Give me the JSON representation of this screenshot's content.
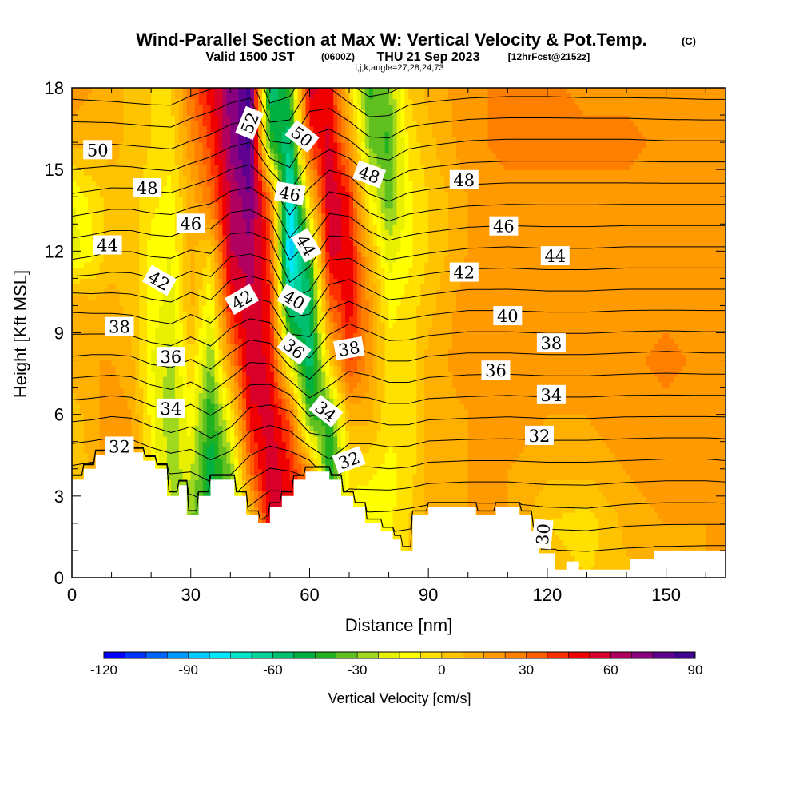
{
  "header": {
    "title": "Wind-Parallel Section at Max W: Vertical Velocity & Pot.Temp.",
    "title_units": "(C)",
    "subtitle_main": "Valid 1500 JST",
    "subtitle_utc": "(0600Z)",
    "subtitle_date": "THU 21 Sep 2023",
    "subtitle_fcst": "[12hrFcst@2152z]",
    "subtitle_indices": "i,j,k,angle=27,28,24,73"
  },
  "chart_data": {
    "type": "heatmap",
    "xlabel": "Distance [nm]",
    "ylabel": "Height [Kft MSL]",
    "xlim": [
      0,
      165
    ],
    "ylim": [
      0,
      18
    ],
    "x_ticks": [
      0,
      30,
      60,
      90,
      120,
      150
    ],
    "x_tick_labels": [
      "0",
      "30",
      "60",
      "90",
      "120",
      "150"
    ],
    "y_ticks": [
      0,
      3,
      6,
      9,
      12,
      15,
      18
    ],
    "y_tick_labels": [
      "0",
      "3",
      "6",
      "9",
      "12",
      "15",
      "18"
    ],
    "fill_variable": "Vertical Velocity [cm/s]",
    "contour_variable": "Pot.Temp. (C)",
    "colorbar": {
      "label": "Vertical Velocity [cm/s]",
      "range": [
        -120,
        90
      ],
      "interval": 7.5,
      "tick_values": [
        -120,
        -90,
        -60,
        -30,
        0,
        30,
        60,
        90
      ],
      "tick_labels": [
        "-120",
        "-90",
        "-60",
        "-30",
        "0",
        "30",
        "60",
        "90"
      ],
      "colors": [
        "#0000ff",
        "#0033ff",
        "#0066ff",
        "#0099ff",
        "#00ccff",
        "#00e8ff",
        "#00e6c8",
        "#00d29a",
        "#00c070",
        "#00b040",
        "#20b020",
        "#60c020",
        "#a0d820",
        "#e8f000",
        "#ffff00",
        "#ffe000",
        "#ffc400",
        "#ffb000",
        "#ff9a00",
        "#ff7f00",
        "#ff5f00",
        "#ff3000",
        "#f00000",
        "#d8002a",
        "#b00060",
        "#880080",
        "#600090",
        "#400090"
      ]
    },
    "columns": [
      {
        "x": 0,
        "w": [
          0,
          0,
          0,
          5,
          10,
          15,
          -20,
          -15,
          10,
          20
        ]
      },
      {
        "x": 5,
        "w": [
          5,
          5,
          10,
          10,
          15,
          10,
          -10,
          -5,
          10,
          15
        ]
      },
      {
        "x": 10,
        "w": [
          10,
          15,
          20,
          20,
          15,
          10,
          5,
          5,
          10,
          10
        ]
      },
      {
        "x": 15,
        "w": [
          5,
          10,
          15,
          15,
          10,
          5,
          5,
          5,
          5,
          5
        ]
      },
      {
        "x": 20,
        "w": [
          0,
          -5,
          -10,
          -10,
          -15,
          -10,
          -10,
          -5,
          0,
          0
        ]
      },
      {
        "x": 25,
        "w": [
          -10,
          -20,
          -25,
          -30,
          -25,
          -20,
          -15,
          -10,
          -5,
          0
        ]
      },
      {
        "x": 30,
        "w": [
          -30,
          -30,
          -20,
          -10,
          0,
          10,
          10,
          10,
          20,
          30
        ]
      },
      {
        "x": 35,
        "w": [
          -40,
          -45,
          -50,
          -45,
          -30,
          -15,
          0,
          30,
          40,
          50
        ]
      },
      {
        "x": 40,
        "w": [
          -50,
          -45,
          -30,
          -10,
          20,
          45,
          60,
          60,
          70,
          70
        ]
      },
      {
        "x": 45,
        "w": [
          -20,
          0,
          30,
          50,
          60,
          60,
          65,
          75,
          85,
          85
        ]
      },
      {
        "x": 50,
        "w": [
          40,
          50,
          60,
          55,
          50,
          45,
          40,
          30,
          -40,
          -60
        ]
      },
      {
        "x": 55,
        "w": [
          60,
          55,
          45,
          35,
          -20,
          -60,
          -90,
          -80,
          -60,
          -40
        ]
      },
      {
        "x": 60,
        "w": [
          50,
          40,
          20,
          -40,
          -60,
          -60,
          -40,
          0,
          40,
          55
        ]
      },
      {
        "x": 65,
        "w": [
          0,
          -30,
          -50,
          -40,
          0,
          30,
          55,
          60,
          55,
          50
        ]
      },
      {
        "x": 70,
        "w": [
          -10,
          -10,
          -5,
          10,
          40,
          50,
          50,
          45,
          20,
          0
        ]
      },
      {
        "x": 75,
        "w": [
          -10,
          -15,
          -5,
          10,
          20,
          20,
          10,
          -10,
          -30,
          -40
        ]
      },
      {
        "x": 80,
        "w": [
          -5,
          -10,
          -10,
          -5,
          -5,
          -10,
          -20,
          -35,
          -40,
          -30
        ]
      },
      {
        "x": 85,
        "w": [
          0,
          0,
          -5,
          -5,
          -5,
          -5,
          -10,
          -10,
          -5,
          0
        ]
      },
      {
        "x": 90,
        "w": [
          5,
          10,
          10,
          10,
          10,
          5,
          0,
          0,
          5,
          10
        ]
      },
      {
        "x": 100,
        "w": [
          15,
          15,
          15,
          15,
          20,
          20,
          15,
          15,
          20,
          20
        ]
      },
      {
        "x": 110,
        "w": [
          10,
          15,
          15,
          20,
          20,
          20,
          20,
          20,
          25,
          25
        ]
      },
      {
        "x": 120,
        "w": [
          5,
          0,
          10,
          15,
          15,
          15,
          15,
          20,
          25,
          25
        ]
      },
      {
        "x": 130,
        "w": [
          0,
          -5,
          10,
          15,
          15,
          15,
          15,
          20,
          25,
          20
        ]
      },
      {
        "x": 140,
        "w": [
          5,
          10,
          15,
          20,
          20,
          20,
          20,
          20,
          25,
          20
        ]
      },
      {
        "x": 150,
        "w": [
          10,
          15,
          20,
          20,
          25,
          20,
          20,
          20,
          20,
          20
        ]
      },
      {
        "x": 160,
        "w": [
          15,
          15,
          20,
          20,
          20,
          20,
          20,
          20,
          20,
          15
        ]
      },
      {
        "x": 165,
        "w": [
          15,
          15,
          15,
          20,
          20,
          20,
          20,
          20,
          20,
          15
        ]
      }
    ],
    "column_levels_kft": [
      0,
      2,
      4,
      6,
      8,
      10,
      12,
      14,
      16,
      18
    ],
    "terrain_kft": [
      [
        0,
        3.6
      ],
      [
        3,
        3.6
      ],
      [
        3,
        4.0
      ],
      [
        6,
        4.0
      ],
      [
        6,
        4.5
      ],
      [
        9,
        4.5
      ],
      [
        9,
        4.6
      ],
      [
        18,
        4.6
      ],
      [
        18,
        4.3
      ],
      [
        21,
        4.3
      ],
      [
        21,
        4.0
      ],
      [
        24,
        4.0
      ],
      [
        24,
        3.0
      ],
      [
        27,
        3.0
      ],
      [
        27,
        3.4
      ],
      [
        29,
        3.4
      ],
      [
        29,
        2.3
      ],
      [
        32,
        2.3
      ],
      [
        32,
        3.0
      ],
      [
        35,
        3.0
      ],
      [
        35,
        3.6
      ],
      [
        41,
        3.6
      ],
      [
        41,
        3.0
      ],
      [
        44,
        3.0
      ],
      [
        44,
        2.3
      ],
      [
        47,
        2.3
      ],
      [
        47,
        2.0
      ],
      [
        50,
        2.0
      ],
      [
        50,
        2.6
      ],
      [
        53,
        2.6
      ],
      [
        53,
        3.0
      ],
      [
        56,
        3.0
      ],
      [
        56,
        3.6
      ],
      [
        59,
        3.6
      ],
      [
        59,
        3.9
      ],
      [
        65,
        3.9
      ],
      [
        65,
        3.6
      ],
      [
        68,
        3.6
      ],
      [
        68,
        3.0
      ],
      [
        71,
        3.0
      ],
      [
        71,
        2.6
      ],
      [
        74,
        2.6
      ],
      [
        74,
        2.0
      ],
      [
        78,
        2.0
      ],
      [
        78,
        1.7
      ],
      [
        81,
        1.7
      ],
      [
        81,
        1.4
      ],
      [
        83,
        1.4
      ],
      [
        83,
        1.0
      ],
      [
        86,
        1.0
      ],
      [
        86,
        2.3
      ],
      [
        90,
        2.3
      ],
      [
        90,
        2.6
      ],
      [
        102,
        2.6
      ],
      [
        102,
        2.3
      ],
      [
        107,
        2.3
      ],
      [
        107,
        2.6
      ],
      [
        113,
        2.6
      ],
      [
        113,
        2.3
      ],
      [
        116,
        2.3
      ],
      [
        116,
        1.7
      ],
      [
        118,
        1.7
      ],
      [
        118,
        0.9
      ],
      [
        122,
        0.9
      ],
      [
        122,
        0.3
      ],
      [
        125,
        0.3
      ],
      [
        125,
        0.6
      ],
      [
        128,
        0.6
      ],
      [
        128,
        0.3
      ],
      [
        141,
        0.3
      ],
      [
        141,
        0.7
      ],
      [
        147,
        0.7
      ],
      [
        147,
        1.0
      ],
      [
        159,
        1.0
      ],
      [
        159,
        1.0
      ],
      [
        165,
        1.0
      ]
    ],
    "theta_contours_C": [
      30,
      31,
      32,
      33,
      34,
      35,
      36,
      37,
      38,
      39,
      40,
      41,
      42,
      43,
      44,
      45,
      46,
      47,
      48,
      49,
      50,
      51,
      52,
      53
    ],
    "theta_contour_labels": [
      {
        "text": "52",
        "x": 45,
        "y": 16.7,
        "angle": -68
      },
      {
        "text": "50",
        "x": 58,
        "y": 16.2,
        "angle": 38
      },
      {
        "text": "50",
        "x": 6.5,
        "y": 15.7,
        "angle": 0
      },
      {
        "text": "48",
        "x": 75,
        "y": 14.8,
        "angle": 20
      },
      {
        "text": "48",
        "x": 99,
        "y": 14.6,
        "angle": 0
      },
      {
        "text": "48",
        "x": 19,
        "y": 14.3,
        "angle": 0
      },
      {
        "text": "46",
        "x": 55,
        "y": 14.1,
        "angle": 10
      },
      {
        "text": "46",
        "x": 30,
        "y": 13.0,
        "angle": 0
      },
      {
        "text": "46",
        "x": 109,
        "y": 12.9,
        "angle": 0
      },
      {
        "text": "44",
        "x": 9,
        "y": 12.2,
        "angle": 0
      },
      {
        "text": "44",
        "x": 59,
        "y": 12.2,
        "angle": 60
      },
      {
        "text": "44",
        "x": 122,
        "y": 11.8,
        "angle": 0
      },
      {
        "text": "42",
        "x": 99,
        "y": 11.2,
        "angle": 0
      },
      {
        "text": "42",
        "x": 22,
        "y": 10.9,
        "angle": 30
      },
      {
        "text": "42",
        "x": 43,
        "y": 10.2,
        "angle": -30
      },
      {
        "text": "40",
        "x": 56,
        "y": 10.2,
        "angle": 30
      },
      {
        "text": "40",
        "x": 110,
        "y": 9.6,
        "angle": 0
      },
      {
        "text": "38",
        "x": 12,
        "y": 9.2,
        "angle": 0
      },
      {
        "text": "38",
        "x": 70,
        "y": 8.4,
        "angle": -10
      },
      {
        "text": "38",
        "x": 121,
        "y": 8.6,
        "angle": 0
      },
      {
        "text": "36",
        "x": 56,
        "y": 8.4,
        "angle": 38
      },
      {
        "text": "36",
        "x": 25,
        "y": 8.1,
        "angle": 0
      },
      {
        "text": "36",
        "x": 107,
        "y": 7.6,
        "angle": 0
      },
      {
        "text": "34",
        "x": 121,
        "y": 6.7,
        "angle": 0
      },
      {
        "text": "34",
        "x": 64,
        "y": 6.1,
        "angle": 38
      },
      {
        "text": "34",
        "x": 25,
        "y": 6.2,
        "angle": 0
      },
      {
        "text": "32",
        "x": 12,
        "y": 4.8,
        "angle": 0
      },
      {
        "text": "32",
        "x": 118,
        "y": 5.2,
        "angle": 0
      },
      {
        "text": "32",
        "x": 70,
        "y": 4.3,
        "angle": -20
      },
      {
        "text": "30",
        "x": 119,
        "y": 1.6,
        "angle": -85
      }
    ]
  }
}
